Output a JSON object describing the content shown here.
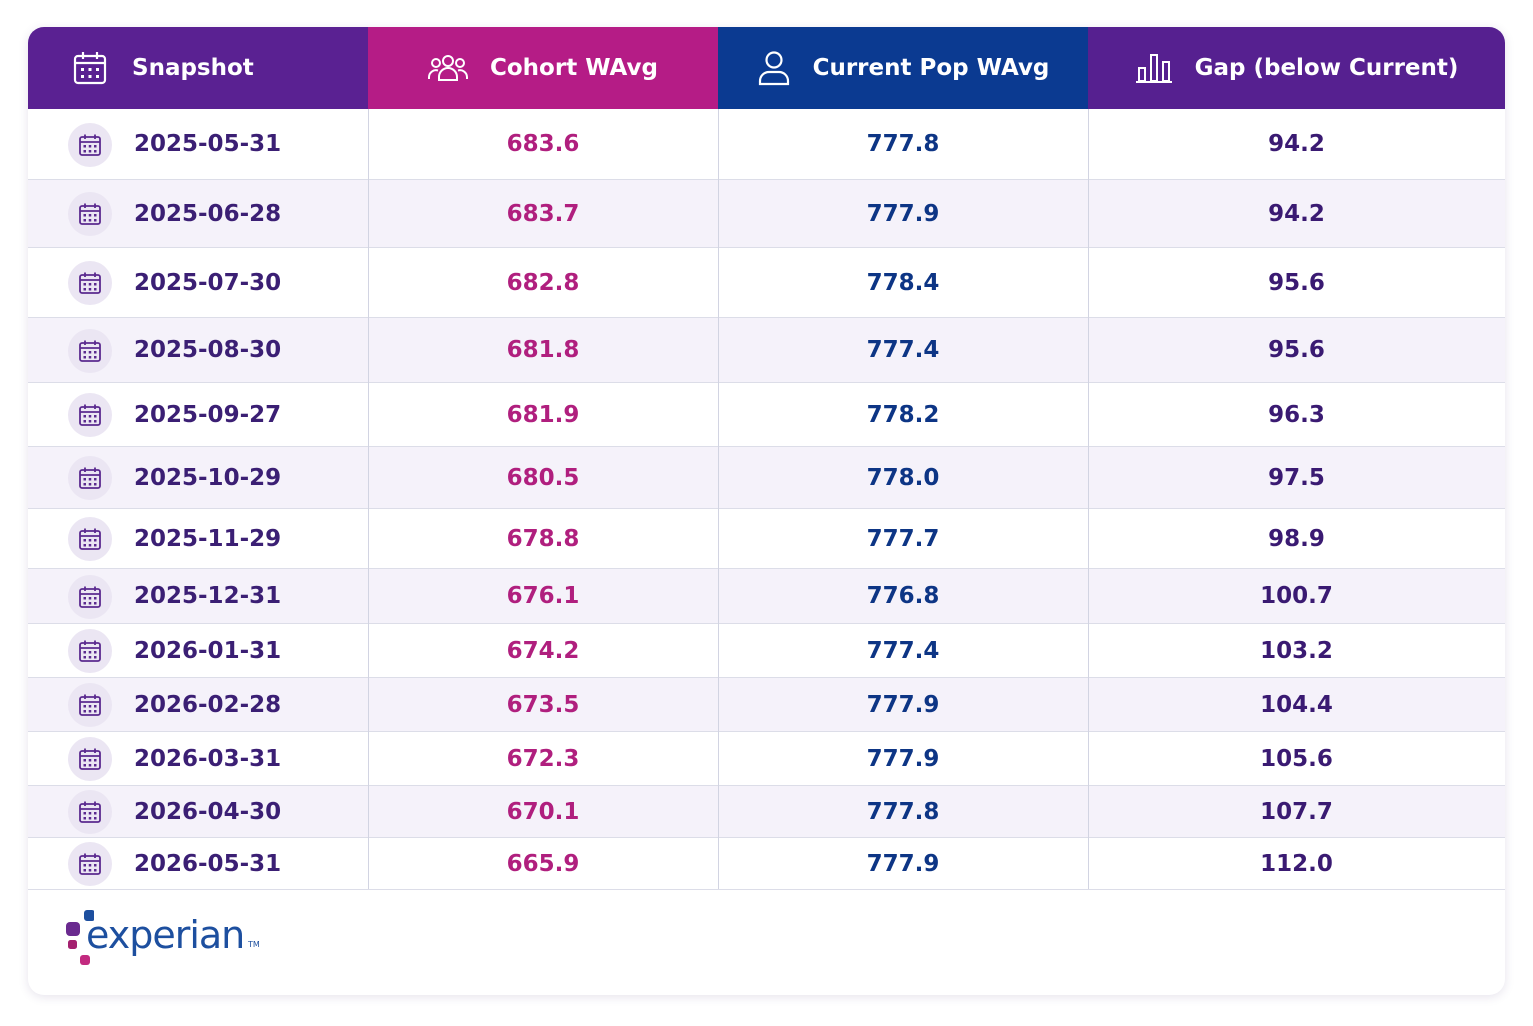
{
  "headers": {
    "snapshot": "Snapshot",
    "cohort": "Cohort WAvg",
    "current": "Current Pop WAvg",
    "gap": "Gap (below Current)"
  },
  "icons": {
    "snapshot": "calendar-icon",
    "cohort": "people-group-icon",
    "current": "person-icon",
    "gap": "bar-chart-icon",
    "row": "calendar-icon"
  },
  "colors": {
    "snapshot_header": "#5a2192",
    "cohort_header": "#b51c86",
    "current_header": "#0b3a91",
    "gap_header": "#562090",
    "cohort_text": "#b01f7e",
    "current_text": "#0d3585",
    "gap_text": "#3a1a72",
    "alt_row": "#f5f2fa"
  },
  "chart_data": {
    "type": "table",
    "columns": [
      "Snapshot",
      "Cohort WAvg",
      "Current Pop WAvg",
      "Gap (below Current)"
    ],
    "rows": [
      {
        "snapshot": "2025-05-31",
        "cohort": "683.6",
        "current": "777.8",
        "gap": "94.2"
      },
      {
        "snapshot": "2025-06-28",
        "cohort": "683.7",
        "current": "777.9",
        "gap": "94.2"
      },
      {
        "snapshot": "2025-07-30",
        "cohort": "682.8",
        "current": "778.4",
        "gap": "95.6"
      },
      {
        "snapshot": "2025-08-30",
        "cohort": "681.8",
        "current": "777.4",
        "gap": "95.6"
      },
      {
        "snapshot": "2025-09-27",
        "cohort": "681.9",
        "current": "778.2",
        "gap": "96.3"
      },
      {
        "snapshot": "2025-10-29",
        "cohort": "680.5",
        "current": "778.0",
        "gap": "97.5"
      },
      {
        "snapshot": "2025-11-29",
        "cohort": "678.8",
        "current": "777.7",
        "gap": "98.9"
      },
      {
        "snapshot": "2025-12-31",
        "cohort": "676.1",
        "current": "776.8",
        "gap": "100.7"
      },
      {
        "snapshot": "2026-01-31",
        "cohort": "674.2",
        "current": "777.4",
        "gap": "103.2"
      },
      {
        "snapshot": "2026-02-28",
        "cohort": "673.5",
        "current": "777.9",
        "gap": "104.4"
      },
      {
        "snapshot": "2026-03-31",
        "cohort": "672.3",
        "current": "777.9",
        "gap": "105.6"
      },
      {
        "snapshot": "2026-04-30",
        "cohort": "670.1",
        "current": "777.8",
        "gap": "107.7"
      },
      {
        "snapshot": "2026-05-31",
        "cohort": "665.9",
        "current": "777.9",
        "gap": "112.0"
      }
    ]
  },
  "brand": {
    "name": "experian",
    "tm": "TM"
  }
}
